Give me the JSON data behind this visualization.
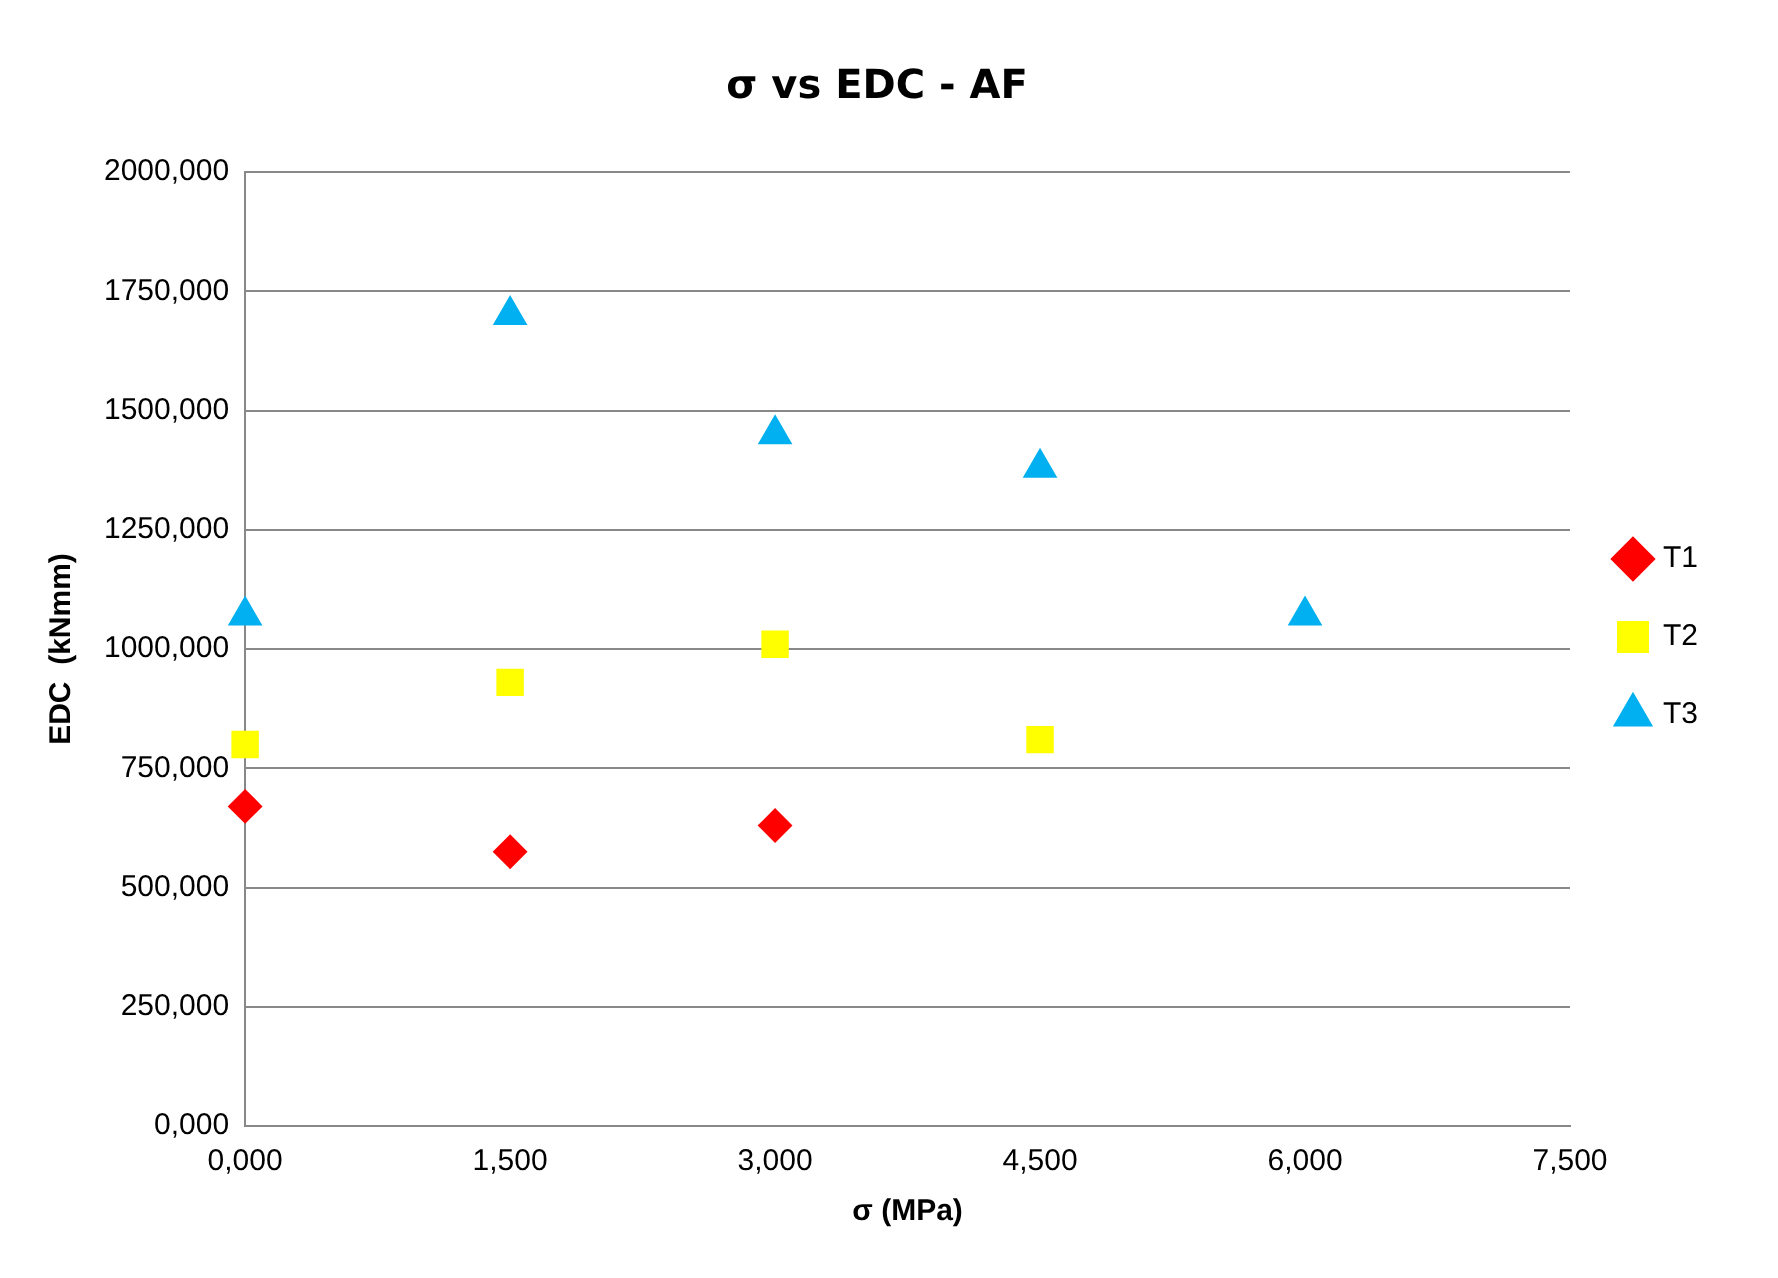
{
  "chart_data": {
    "type": "scatter",
    "title": "σ vs EDC - AF",
    "xlabel": "σ (MPa)",
    "ylabel": "EDC  (kNmm)",
    "xlim": [
      0,
      7.5
    ],
    "xticks": [
      {
        "value": 0,
        "label": "0,000"
      },
      {
        "value": 1.5,
        "label": "1,500"
      },
      {
        "value": 3,
        "label": "3,000"
      },
      {
        "value": 4.5,
        "label": "4,500"
      },
      {
        "value": 6,
        "label": "6,000"
      },
      {
        "value": 7.5,
        "label": "7,500"
      }
    ],
    "ylim": [
      0,
      2000
    ],
    "yticks": [
      {
        "value": 0,
        "label": "0,000"
      },
      {
        "value": 250,
        "label": "250,000"
      },
      {
        "value": 500,
        "label": "500,000"
      },
      {
        "value": 750,
        "label": "750,000"
      },
      {
        "value": 1000,
        "label": "1000,000"
      },
      {
        "value": 1250,
        "label": "1250,000"
      },
      {
        "value": 1500,
        "label": "1500,000"
      },
      {
        "value": 1750,
        "label": "1750,000"
      },
      {
        "value": 2000,
        "label": "2000,000"
      }
    ],
    "grid": "y",
    "legend": "right",
    "series": [
      {
        "name": "T1",
        "color": "#ff0000",
        "marker": "diamond",
        "x": [
          0,
          1.5,
          3
        ],
        "values": [
          670,
          575,
          630
        ]
      },
      {
        "name": "T2",
        "color": "#ffff00",
        "marker": "square",
        "x": [
          0,
          1.5,
          3,
          4.5
        ],
        "values": [
          800,
          930,
          1010,
          810
        ]
      },
      {
        "name": "T3",
        "color": "#00b0f0",
        "marker": "triangle",
        "x": [
          0,
          1.5,
          3,
          4.5,
          6
        ],
        "values": [
          1070,
          1700,
          1450,
          1380,
          1070
        ]
      }
    ]
  }
}
